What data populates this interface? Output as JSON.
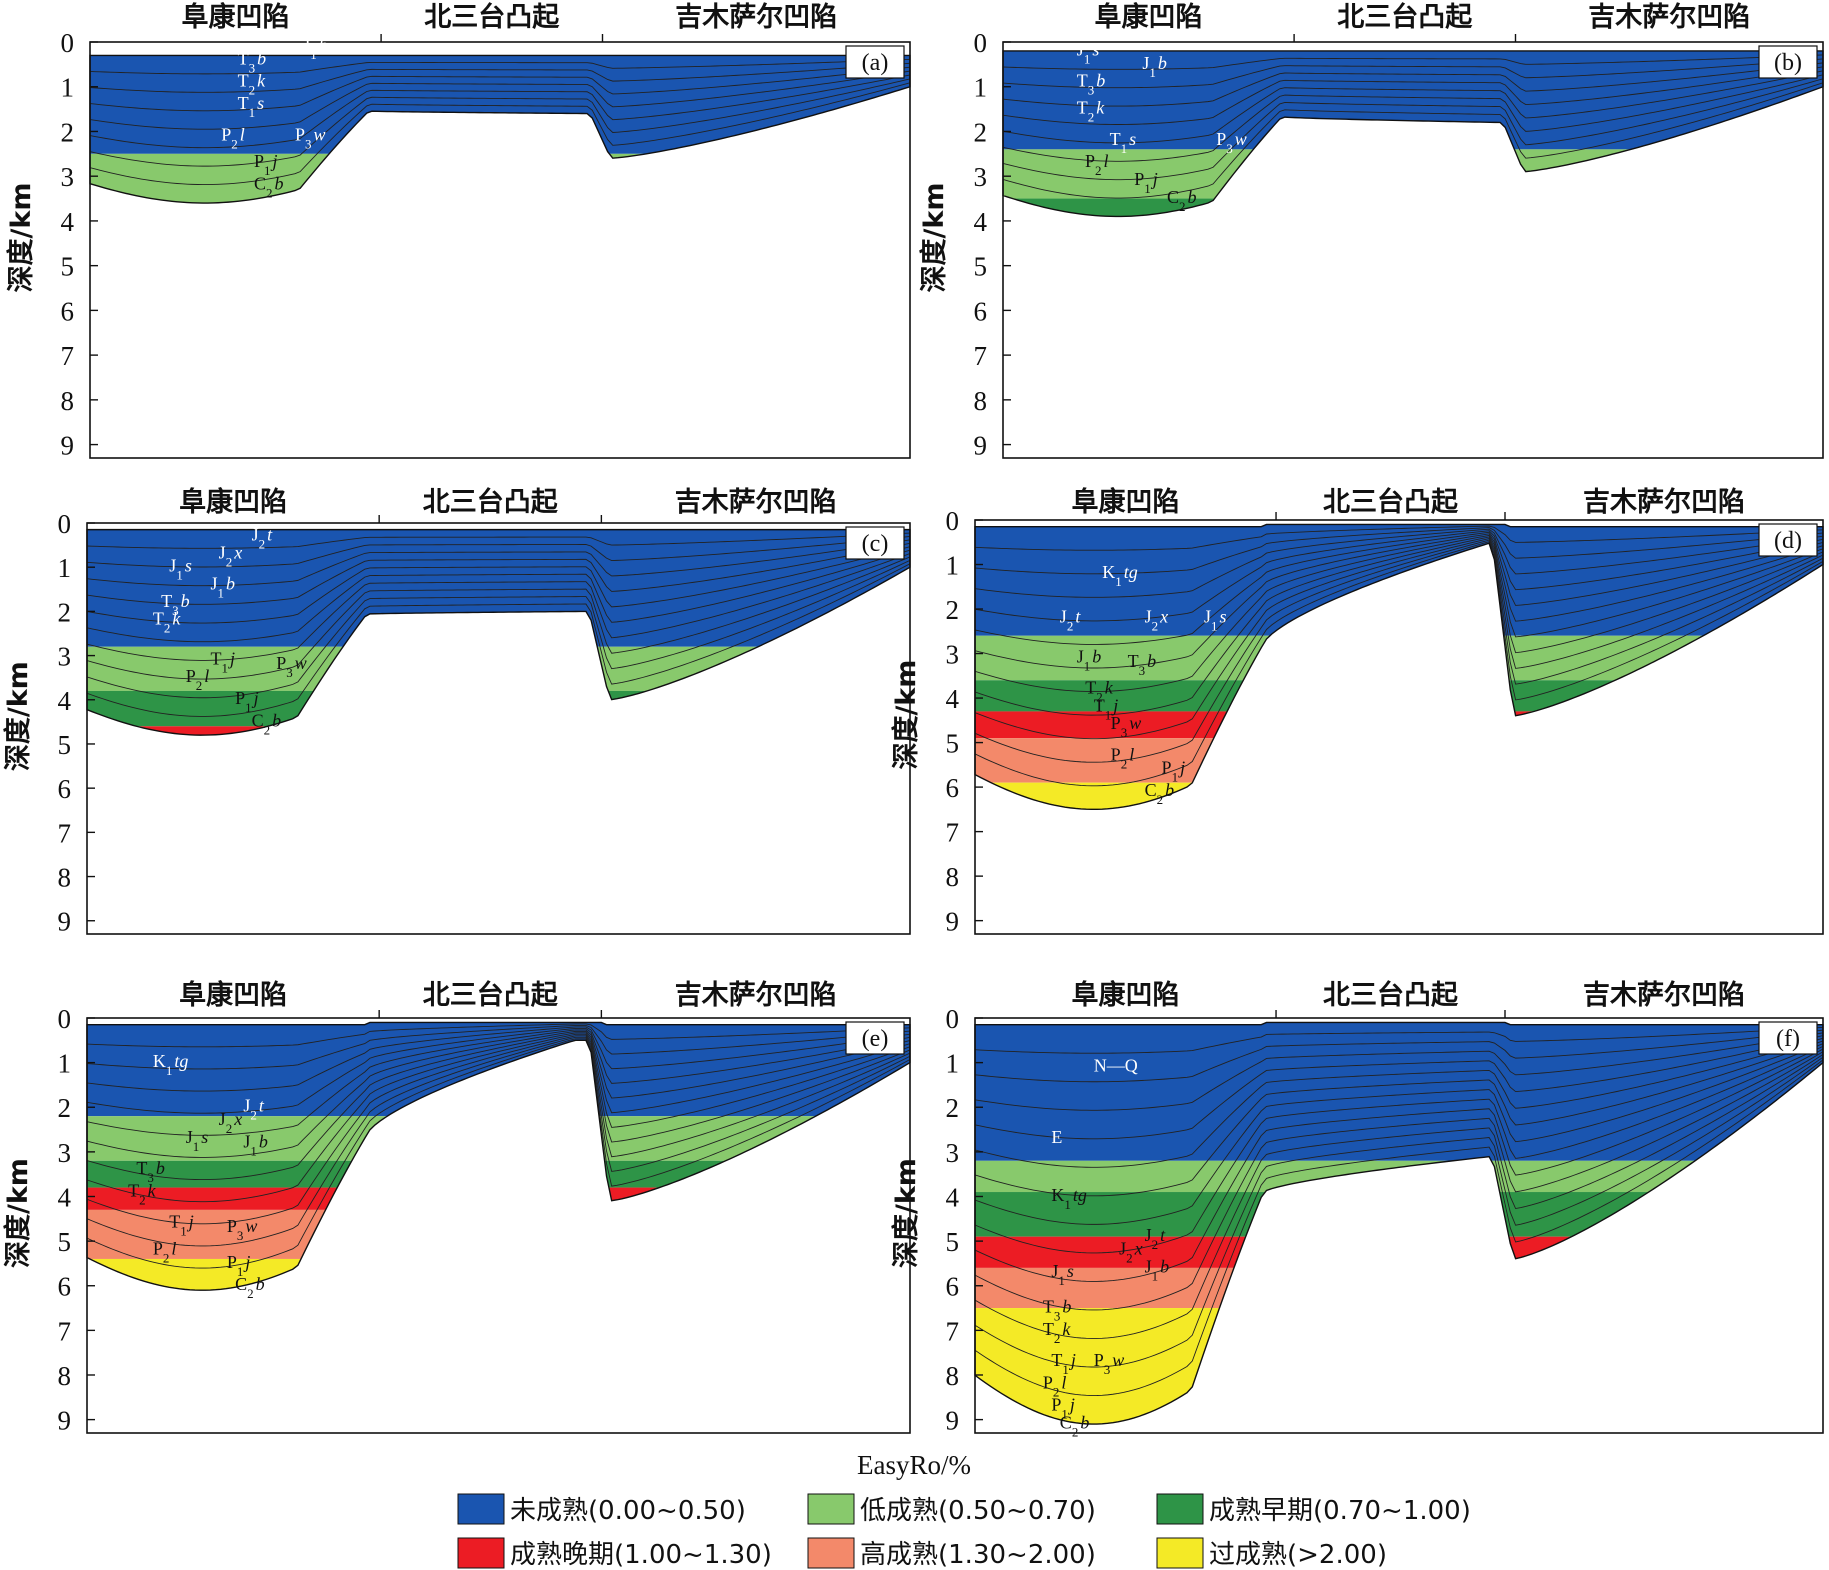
{
  "regions": [
    "阜康凹陷",
    "北三台凸起",
    "吉木萨尔凹陷"
  ],
  "y_axis_label": "深度/km",
  "y_ticks": [
    "0",
    "1",
    "2",
    "3",
    "4",
    "5",
    "6",
    "7",
    "8",
    "9"
  ],
  "legend_title": "EasyRo/%",
  "legend": [
    {
      "label": "未成熟(0.00~0.50)",
      "color": "#1a55b0"
    },
    {
      "label": "低成熟(0.50~0.70)",
      "color": "#88c96c"
    },
    {
      "label": "成熟早期(0.70~1.00)",
      "color": "#2e9447"
    },
    {
      "label": "成熟晚期(1.00~1.30)",
      "color": "#ec1c24"
    },
    {
      "label": "高成熟(1.30~2.00)",
      "color": "#f3896a"
    },
    {
      "label": "过成熟(>2.00)",
      "color": "#f4ea26"
    }
  ],
  "chart_data": [
    {
      "type": "area",
      "panel_label": "(a)",
      "ylim": [
        0,
        9.3
      ],
      "y_unit": "km",
      "maturity_bands_depth_km": [
        {
          "class": "未成熟",
          "top": 0,
          "base": 2.5
        },
        {
          "class": "低成熟",
          "top": 2.5,
          "base": 3.6
        }
      ],
      "strata_labels": [
        "J1b",
        "T3b",
        "T2k",
        "T1s",
        "P2l",
        "P3w",
        "P1j",
        "C2b"
      ]
    },
    {
      "type": "area",
      "panel_label": "(b)",
      "ylim": [
        0,
        9.3
      ],
      "y_unit": "km",
      "maturity_bands_depth_km": [
        {
          "class": "未成熟",
          "top": 0,
          "base": 2.4
        },
        {
          "class": "低成熟",
          "top": 2.4,
          "base": 3.5
        },
        {
          "class": "成熟早期",
          "top": 3.5,
          "base": 3.9
        }
      ],
      "strata_labels": [
        "J1s",
        "J1b",
        "T3b",
        "T2k",
        "T1s",
        "P3w",
        "P2l",
        "P1j",
        "C2b"
      ]
    },
    {
      "type": "area",
      "panel_label": "(c)",
      "ylim": [
        0,
        9.3
      ],
      "y_unit": "km",
      "maturity_bands_depth_km": [
        {
          "class": "未成熟",
          "top": 0,
          "base": 2.8
        },
        {
          "class": "低成熟",
          "top": 2.8,
          "base": 3.8
        },
        {
          "class": "成熟早期",
          "top": 3.8,
          "base": 4.6
        },
        {
          "class": "成熟晚期",
          "top": 4.6,
          "base": 4.8
        }
      ],
      "strata_labels": [
        "J2t",
        "J2x",
        "J1s",
        "J1b",
        "T3b",
        "T2k",
        "T1j",
        "P3w",
        "P2l",
        "P1j",
        "C2b"
      ]
    },
    {
      "type": "area",
      "panel_label": "(d)",
      "ylim": [
        0,
        9.3
      ],
      "y_unit": "km",
      "maturity_bands_depth_km": [
        {
          "class": "未成熟",
          "top": 0,
          "base": 2.6
        },
        {
          "class": "低成熟",
          "top": 2.6,
          "base": 3.6
        },
        {
          "class": "成熟早期",
          "top": 3.6,
          "base": 4.3
        },
        {
          "class": "成熟晚期",
          "top": 4.3,
          "base": 4.9
        },
        {
          "class": "高成熟",
          "top": 4.9,
          "base": 5.9
        },
        {
          "class": "过成熟",
          "top": 5.9,
          "base": 6.5
        }
      ],
      "strata_labels": [
        "K1tg",
        "J2t",
        "J2x",
        "J1s",
        "J1b",
        "T3b",
        "T2k",
        "T1j",
        "P3w",
        "P2l",
        "P1j",
        "C2b"
      ]
    },
    {
      "type": "area",
      "panel_label": "(e)",
      "ylim": [
        0,
        9.3
      ],
      "y_unit": "km",
      "maturity_bands_depth_km": [
        {
          "class": "未成熟",
          "top": 0,
          "base": 2.2
        },
        {
          "class": "低成熟",
          "top": 2.2,
          "base": 3.2
        },
        {
          "class": "成熟早期",
          "top": 3.2,
          "base": 3.8
        },
        {
          "class": "成熟晚期",
          "top": 3.8,
          "base": 4.3
        },
        {
          "class": "高成熟",
          "top": 4.3,
          "base": 5.4
        },
        {
          "class": "过成熟",
          "top": 5.4,
          "base": 6.1
        }
      ],
      "strata_labels": [
        "K1tg",
        "J2t",
        "J2x",
        "J1s",
        "J1b",
        "T3b",
        "T2k",
        "T1j",
        "P3w",
        "P2l",
        "P1j",
        "C2b"
      ]
    },
    {
      "type": "area",
      "panel_label": "(f)",
      "ylim": [
        0,
        9.3
      ],
      "y_unit": "km",
      "maturity_bands_depth_km": [
        {
          "class": "未成熟",
          "top": 0,
          "base": 3.2
        },
        {
          "class": "低成熟",
          "top": 3.2,
          "base": 3.9
        },
        {
          "class": "成熟早期",
          "top": 3.9,
          "base": 4.9
        },
        {
          "class": "成熟晚期",
          "top": 4.9,
          "base": 5.6
        },
        {
          "class": "高成熟",
          "top": 5.6,
          "base": 6.5
        },
        {
          "class": "过成熟",
          "top": 6.5,
          "base": 9.1
        }
      ],
      "strata_labels": [
        "N—Q",
        "E",
        "K1tg",
        "J2t",
        "J2x",
        "J1s",
        "J1b",
        "T3b",
        "T2k",
        "T1j",
        "P3w",
        "P2l",
        "P1j",
        "C2b"
      ]
    }
  ]
}
